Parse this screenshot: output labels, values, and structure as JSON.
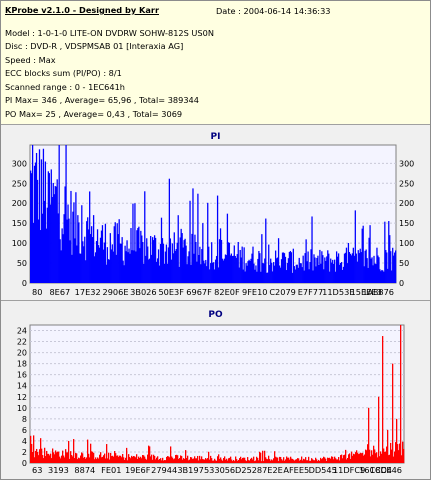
{
  "header": {
    "title": "KProbe v2.1.0 - Designed by Karr",
    "date_label": "Date : 2004-06-14 14:36:33",
    "lines": [
      "Model : 1-0-1-0 LITE-ON DVDRW SOHW-812S  US0N",
      "Disc : DVD-R , VDSPMSAB 01 [Interaxia AG]",
      "Speed : Max",
      "ECC blocks sum (PI/PO) : 8/1",
      "Scanned range : 0 - 1EC641h",
      "PI Max= 346 , Average= 65,96 , Total= 389344",
      "PO Max= 25 , Average= 0,43 , Total= 3069"
    ]
  },
  "chart_data": [
    {
      "type": "bar",
      "title": "PI",
      "color": "#0000ff",
      "ylim": [
        0,
        346
      ],
      "y_ticks": [
        0,
        50,
        100,
        150,
        200,
        250,
        300
      ],
      "right_ticks": [
        "0",
        "50",
        "100",
        "150",
        "200",
        "250",
        "300"
      ],
      "x_tick_labels": [
        "80",
        "8E67",
        "17E32",
        "2906E",
        "3B026",
        "50E3F",
        "6967F",
        "82E0F",
        "9FE10",
        "C2079",
        "E7F77",
        "11D53E",
        "15EEE3",
        "1A8876"
      ],
      "profile": [
        [
          0,
          300
        ],
        [
          10,
          295
        ],
        [
          25,
          250
        ],
        [
          45,
          185
        ],
        [
          60,
          150
        ],
        [
          75,
          130
        ],
        [
          95,
          118
        ],
        [
          130,
          108
        ],
        [
          160,
          100
        ],
        [
          200,
          90
        ],
        [
          240,
          70
        ],
        [
          290,
          68
        ],
        [
          330,
          74
        ],
        [
          370,
          80
        ]
      ],
      "peaks": [
        [
          2,
          346
        ],
        [
          6,
          326
        ],
        [
          11,
          310
        ],
        [
          18,
          280
        ],
        [
          27,
          260
        ],
        [
          52,
          195
        ],
        [
          90,
          160
        ],
        [
          150,
          170
        ],
        [
          345,
          145
        ],
        [
          365,
          120
        ]
      ],
      "grid": true
    },
    {
      "type": "bar",
      "title": "PO",
      "color": "#ff0000",
      "ylim": [
        0,
        25
      ],
      "y_ticks": [
        0,
        2,
        4,
        6,
        8,
        10,
        12,
        14,
        16,
        18,
        20,
        22,
        24
      ],
      "x_tick_labels": [
        "63",
        "3193",
        "8874",
        "FE01",
        "19E6F",
        "27944",
        "3B197",
        "53305",
        "6D252",
        "87E2E",
        "AFEE5",
        "DD545",
        "11DFC9",
        "16C8D4",
        "1CCE46"
      ],
      "profile": [
        [
          0,
          2.6
        ],
        [
          40,
          2.0
        ],
        [
          90,
          1.4
        ],
        [
          150,
          1.2
        ],
        [
          220,
          0.9
        ],
        [
          300,
          1.0
        ],
        [
          325,
          1.8
        ],
        [
          350,
          3.0
        ],
        [
          372,
          3.5
        ]
      ],
      "peaks": [
        [
          3,
          5
        ],
        [
          10,
          4.5
        ],
        [
          38,
          4
        ],
        [
          60,
          3.5
        ],
        [
          140,
          3
        ],
        [
          338,
          10
        ],
        [
          348,
          12
        ],
        [
          352,
          23
        ],
        [
          357,
          6
        ],
        [
          362,
          18
        ],
        [
          366,
          8
        ],
        [
          370,
          25
        ]
      ],
      "grid": true
    }
  ]
}
